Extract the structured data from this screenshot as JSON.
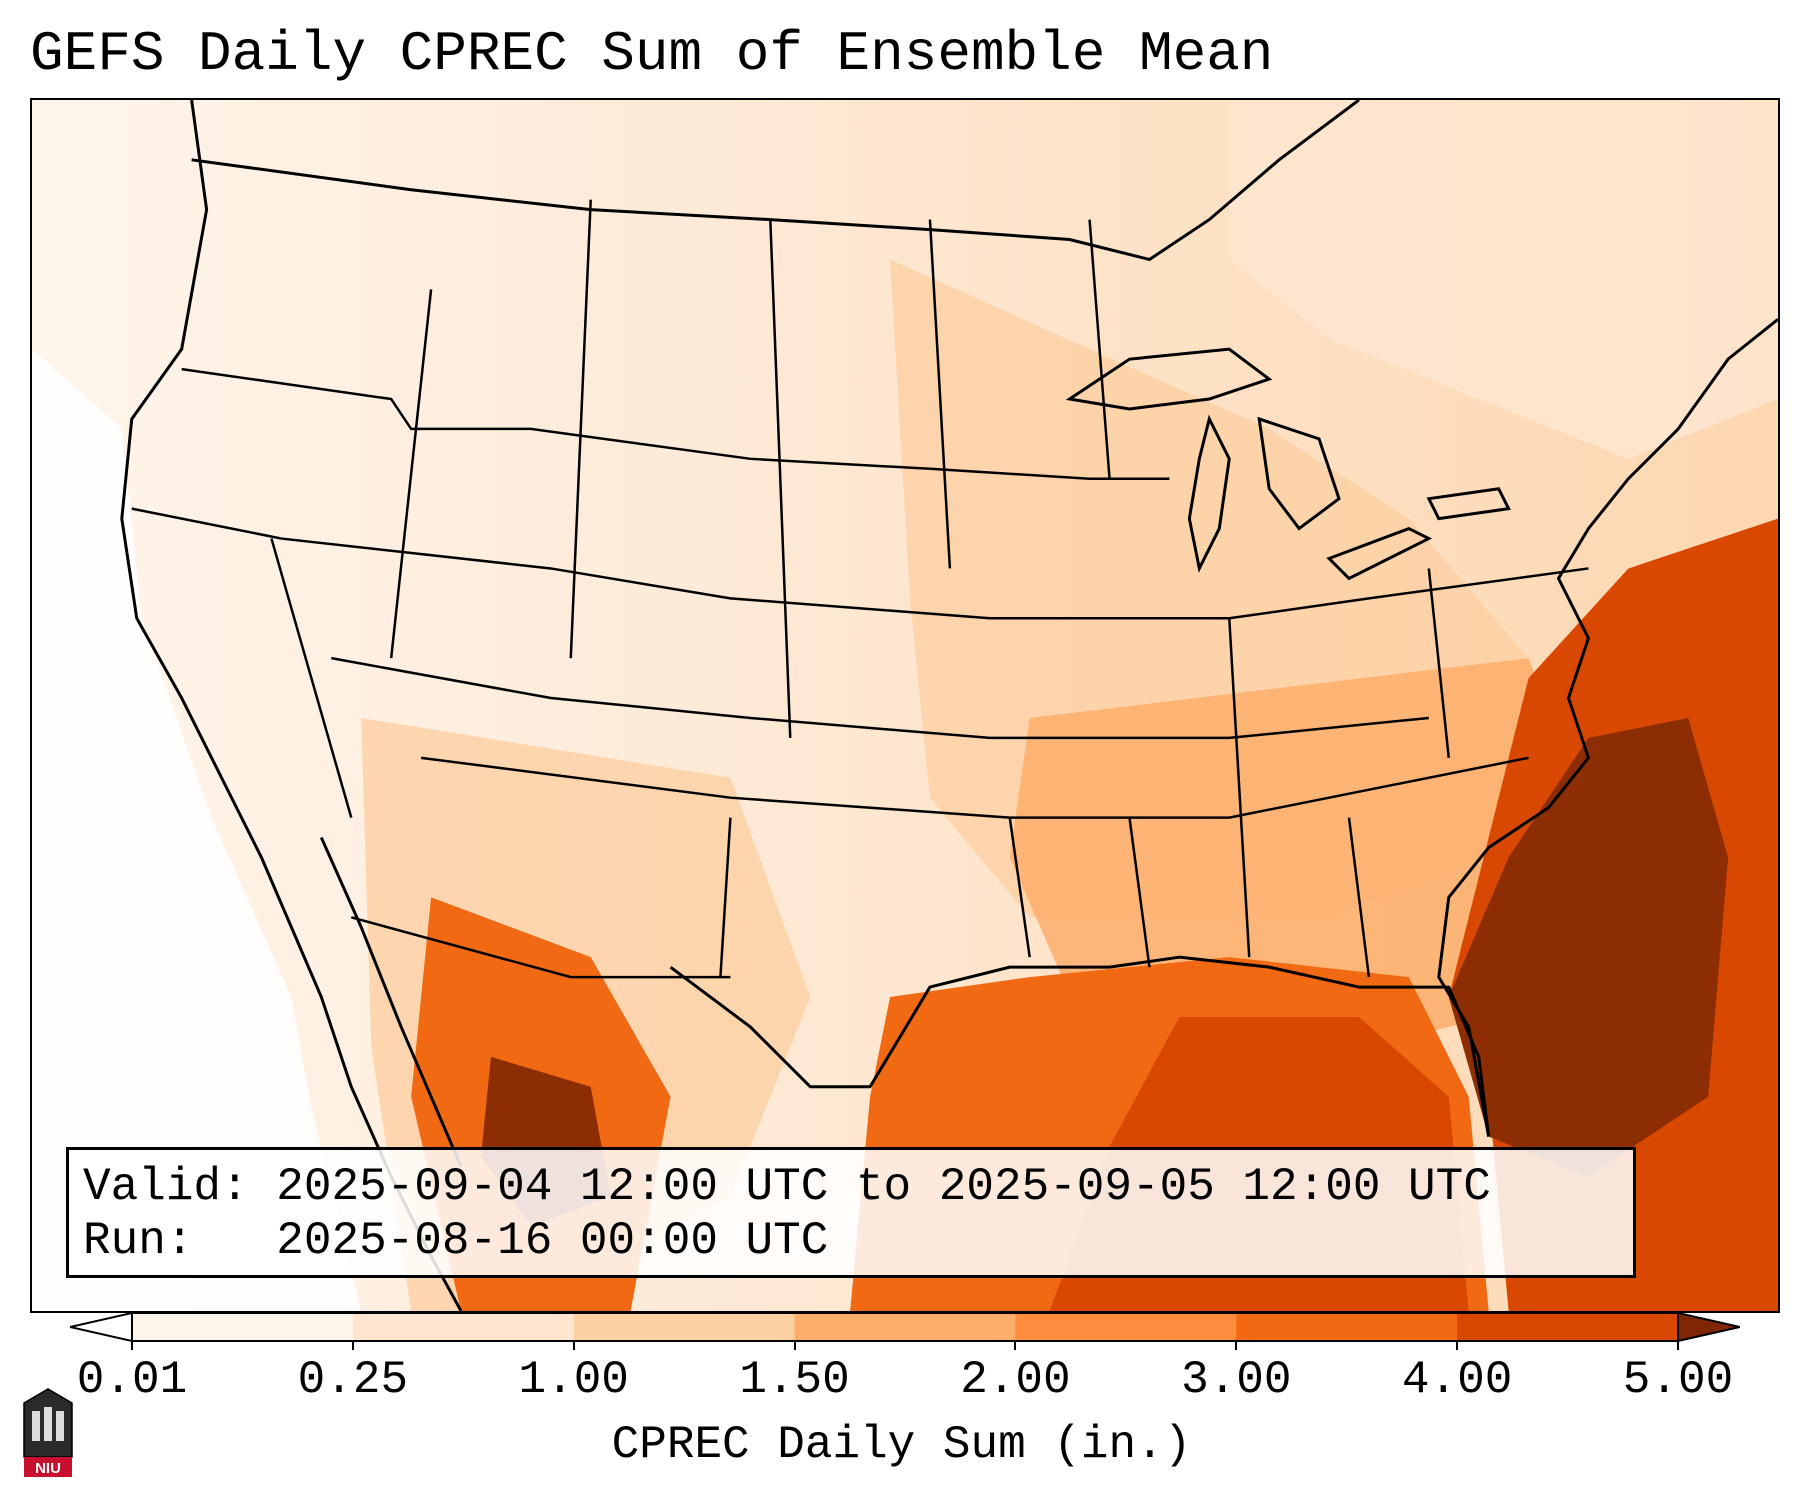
{
  "title": "GEFS Daily CPREC Sum of Ensemble Mean",
  "valid_label": "Valid:",
  "valid_value": "2025-09-04 12:00 UTC to 2025-09-05 12:00 UTC",
  "run_label": "Run:",
  "run_value": "2025-08-16 00:00 UTC",
  "colorbar": {
    "label": "CPREC Daily Sum (in.)",
    "ticks": [
      "0.01",
      "0.25",
      "1.00",
      "1.50",
      "2.00",
      "3.00",
      "4.00",
      "5.00"
    ],
    "colors": [
      "#fff5eb",
      "#fee6ce",
      "#fdd0a2",
      "#fdae6b",
      "#fd8d3c",
      "#f16913",
      "#d94801",
      "#8c2d04"
    ],
    "under_color": "#ffffff",
    "over_color": "#7f2704"
  },
  "logo": {
    "text": "NIU",
    "icon": "niu-logo-icon"
  },
  "legend_colors": {
    "land_light": "#fdebd9",
    "ocean_heavy": "#8c2d04",
    "gulf": "#d94801"
  }
}
